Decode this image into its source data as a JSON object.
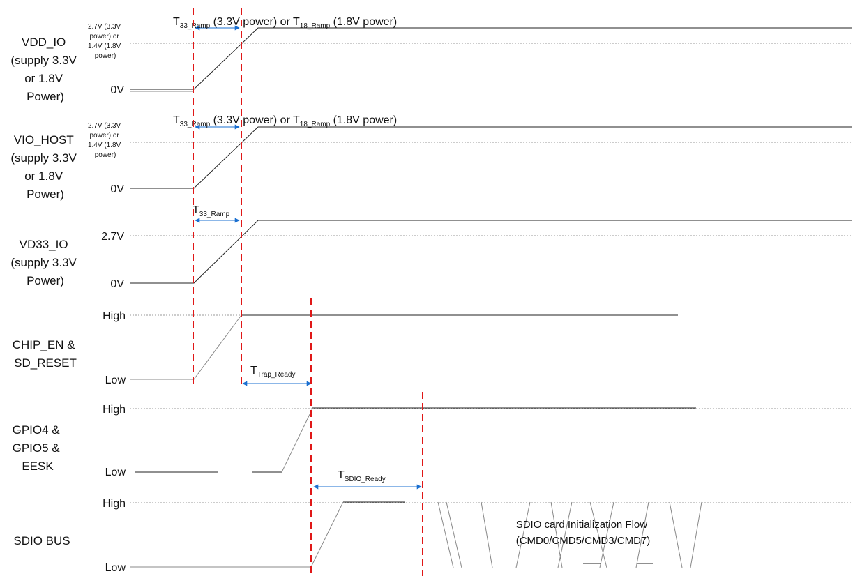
{
  "signals": {
    "vdd_io": {
      "name_lines": [
        "VDD_IO",
        "(supply 3.3V",
        "or 1.8V",
        "Power)"
      ],
      "high_lines": [
        "2.7V (3.3V",
        "power) or",
        "1.4V (1.8V",
        "power)"
      ],
      "low": "0V"
    },
    "vio_host": {
      "name_lines": [
        "VIO_HOST",
        "(supply 3.3V",
        "or 1.8V",
        "Power)"
      ],
      "high_lines": [
        "2.7V (3.3V",
        "power) or",
        "1.4V (1.8V",
        "power)"
      ],
      "low": "0V"
    },
    "vd33_io": {
      "name_lines": [
        "VD33_IO",
        "(supply 3.3V",
        "Power)"
      ],
      "high": "2.7V",
      "low": "0V"
    },
    "chip_en": {
      "name_lines": [
        "CHIP_EN &",
        "SD_RESET"
      ],
      "high": "High",
      "low": "Low"
    },
    "gpio": {
      "name_lines": [
        "GPIO4 &",
        "GPIO5 &",
        "EESK"
      ],
      "high": "High",
      "low": "Low"
    },
    "sdio": {
      "name_lines": [
        "SDIO BUS"
      ],
      "high": "High",
      "low": "Low"
    }
  },
  "timing": {
    "t33": {
      "main": "T",
      "sub": "33_Ramp"
    },
    "t33_power": " (3.3V power) or ",
    "t18": {
      "main": "T",
      "sub": "18_Ramp"
    },
    "t18_power": " (1.8V power)",
    "trap": {
      "main": "T",
      "sub": "Trap_Ready"
    },
    "tsdio": {
      "main": "T",
      "sub": "SDIO_Ready"
    }
  },
  "flow_lines": [
    "SDIO card Initialization Flow",
    "(CMD0/CMD5/CMD3/CMD7)"
  ],
  "colors": {
    "marker": "#e01818",
    "arrow": "#1a6fd0",
    "wave": "#222222"
  }
}
